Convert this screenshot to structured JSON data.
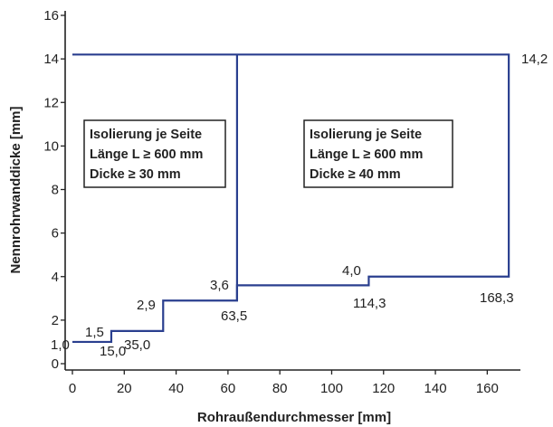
{
  "chart_data": {
    "type": "line",
    "xlabel": "Rohraußendurchmesser [mm]",
    "ylabel": "Nennrohrwanddicke [mm]",
    "xlim": [
      0,
      170
    ],
    "ylim": [
      0,
      16
    ],
    "xticks": [
      "0",
      "20",
      "40",
      "60",
      "80",
      "100",
      "120",
      "140",
      "160"
    ],
    "yticks": [
      "0",
      "2",
      "4",
      "6",
      "8",
      "10",
      "12",
      "14",
      "16"
    ],
    "grid": false,
    "series": [
      {
        "line_color": "#2a3f8f",
        "points": [
          [
            0,
            1.0
          ],
          [
            15.0,
            1.0
          ],
          [
            15.0,
            1.5
          ],
          [
            35.0,
            1.5
          ],
          [
            35.0,
            2.9
          ],
          [
            63.5,
            2.9
          ],
          [
            63.5,
            3.6
          ],
          [
            114.3,
            3.6
          ],
          [
            114.3,
            4.0
          ],
          [
            168.3,
            4.0
          ],
          [
            168.3,
            14.2
          ],
          [
            0,
            14.2
          ]
        ],
        "divider": [
          [
            63.5,
            2.9
          ],
          [
            63.5,
            14.2
          ]
        ]
      }
    ],
    "value_labels": [
      "1,0",
      "1,5",
      "2,9",
      "3,6",
      "4,0",
      "14,2"
    ],
    "breakpoint_labels": [
      "15,0",
      "35,0",
      "63,5",
      "114,3",
      "168,3"
    ],
    "annotations": [
      {
        "lines": [
          "Isolierung je Seite",
          "Länge L ≥ 600 mm",
          "Dicke ≥ 30 mm"
        ]
      },
      {
        "lines": [
          "Isolierung je Seite",
          "Länge L ≥ 600 mm",
          "Dicke ≥ 40 mm"
        ]
      }
    ]
  }
}
